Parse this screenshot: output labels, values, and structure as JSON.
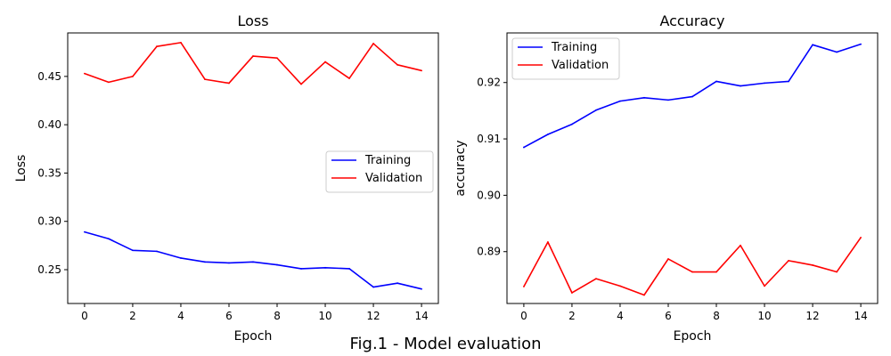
{
  "figure": {
    "caption": "Fig.1 - Model evaluation"
  },
  "chart_data": [
    {
      "type": "line",
      "title": "Loss",
      "xlabel": "Epoch",
      "ylabel": "Loss",
      "x": [
        0,
        1,
        2,
        3,
        4,
        5,
        6,
        7,
        8,
        9,
        10,
        11,
        12,
        13,
        14
      ],
      "xlim": [
        -0.7,
        14.7
      ],
      "ylim": [
        0.215,
        0.495
      ],
      "xticks": [
        0,
        2,
        4,
        6,
        8,
        10,
        12,
        14
      ],
      "yticks": [
        0.25,
        0.3,
        0.35,
        0.4,
        0.45
      ],
      "ytick_labels": [
        "0.25",
        "0.30",
        "0.35",
        "0.40",
        "0.45"
      ],
      "legend_position": "center-right",
      "grid": false,
      "series": [
        {
          "name": "Training",
          "color": "#0000ff",
          "values": [
            0.289,
            0.282,
            0.27,
            0.269,
            0.262,
            0.258,
            0.257,
            0.258,
            0.255,
            0.251,
            0.252,
            0.251,
            0.232,
            0.236,
            0.23
          ]
        },
        {
          "name": "Validation",
          "color": "#ff0000",
          "values": [
            0.453,
            0.444,
            0.45,
            0.481,
            0.485,
            0.447,
            0.443,
            0.471,
            0.469,
            0.442,
            0.465,
            0.448,
            0.484,
            0.462,
            0.456
          ]
        }
      ]
    },
    {
      "type": "line",
      "title": "Accuracy",
      "xlabel": "Epoch",
      "ylabel": "accuracy",
      "x": [
        0,
        1,
        2,
        3,
        4,
        5,
        6,
        7,
        8,
        9,
        10,
        11,
        12,
        13,
        14
      ],
      "xlim": [
        -0.7,
        14.7
      ],
      "ylim": [
        0.8808,
        0.9288
      ],
      "xticks": [
        0,
        2,
        4,
        6,
        8,
        10,
        12,
        14
      ],
      "yticks": [
        0.89,
        0.9,
        0.91,
        0.92
      ],
      "ytick_labels": [
        "0.89",
        "0.90",
        "0.91",
        "0.92"
      ],
      "legend_position": "top-left",
      "grid": false,
      "series": [
        {
          "name": "Training",
          "color": "#0000ff",
          "values": [
            0.9085,
            0.9108,
            0.9126,
            0.9151,
            0.9167,
            0.9173,
            0.9169,
            0.9175,
            0.9202,
            0.9194,
            0.9199,
            0.9202,
            0.9267,
            0.9254,
            0.9268
          ]
        },
        {
          "name": "Validation",
          "color": "#ff0000",
          "values": [
            0.8838,
            0.8917,
            0.8827,
            0.8852,
            0.8839,
            0.8823,
            0.8887,
            0.8864,
            0.8864,
            0.8911,
            0.8839,
            0.8884,
            0.8876,
            0.8864,
            0.8925
          ]
        }
      ]
    }
  ]
}
